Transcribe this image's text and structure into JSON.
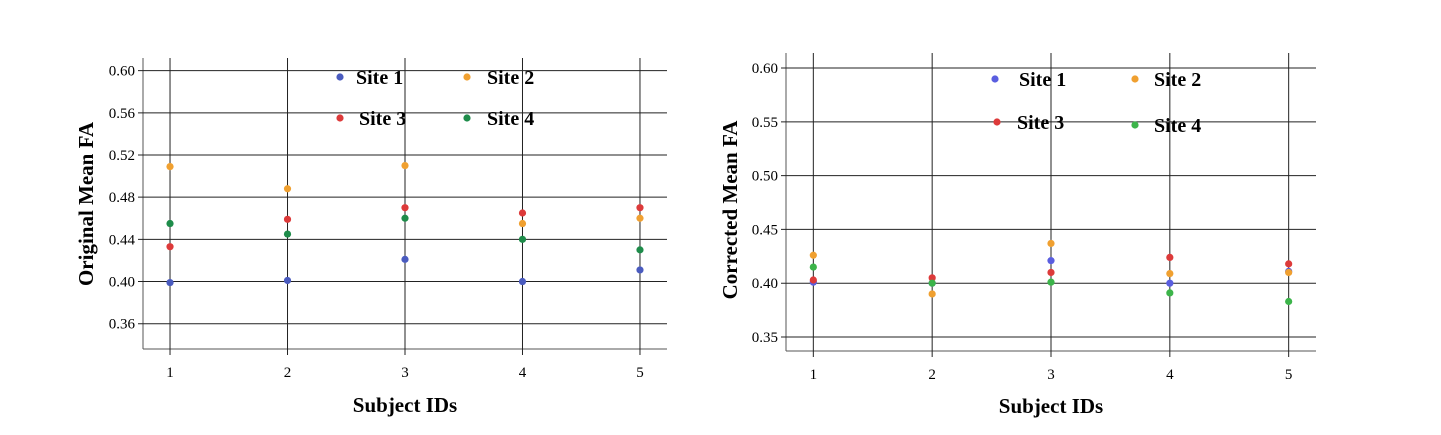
{
  "chart_data": [
    {
      "type": "scatter",
      "xlabel": "Subject IDs",
      "ylabel": "Original Mean FA",
      "x": [
        1,
        2,
        3,
        4,
        5
      ],
      "xlim": [
        0.77,
        5.23
      ],
      "ylim": [
        0.336,
        0.612
      ],
      "yticks": [
        "0.36",
        "0.40",
        "0.44",
        "0.48",
        "0.52",
        "0.56",
        "0.60"
      ],
      "xticks": [
        "1",
        "2",
        "3",
        "4",
        "5"
      ],
      "grid": true,
      "legend_position": "top-center",
      "series": [
        {
          "name": "Site  1",
          "color": "#4a5bbf",
          "values": [
            0.399,
            0.401,
            0.421,
            0.4,
            0.411
          ]
        },
        {
          "name": "Site  2",
          "color": "#f0a030",
          "values": [
            0.509,
            0.488,
            0.51,
            0.455,
            0.46
          ]
        },
        {
          "name": "Site  3",
          "color": "#dd3a3a",
          "values": [
            0.433,
            0.459,
            0.47,
            0.465,
            0.47
          ]
        },
        {
          "name": "Site  4",
          "color": "#1e8c4a",
          "values": [
            0.455,
            0.445,
            0.46,
            0.44,
            0.43
          ]
        }
      ]
    },
    {
      "type": "scatter",
      "xlabel": "Subject IDs",
      "ylabel": "Corrected Mean FA",
      "x": [
        1,
        2,
        3,
        4,
        5
      ],
      "xlim": [
        0.77,
        5.23
      ],
      "ylim": [
        0.337,
        0.614
      ],
      "yticks": [
        "0.35",
        "0.40",
        "0.45",
        "0.50",
        "0.55",
        "0.60"
      ],
      "xticks": [
        "1",
        "2",
        "3",
        "4",
        "5"
      ],
      "grid": true,
      "legend_position": "top-center",
      "series": [
        {
          "name": "Site 1",
          "color": "#5a5ee0",
          "values": [
            0.401,
            0.4,
            0.421,
            0.4,
            0.411
          ]
        },
        {
          "name": "Site 2",
          "color": "#f0a030",
          "values": [
            0.426,
            0.39,
            0.437,
            0.409,
            0.41
          ]
        },
        {
          "name": "Site  3",
          "color": "#dd3a3a",
          "values": [
            0.403,
            0.405,
            0.41,
            0.424,
            0.418
          ]
        },
        {
          "name": "Site 4",
          "color": "#3cb44a",
          "values": [
            0.415,
            0.4,
            0.401,
            0.391,
            0.383
          ]
        }
      ]
    }
  ]
}
